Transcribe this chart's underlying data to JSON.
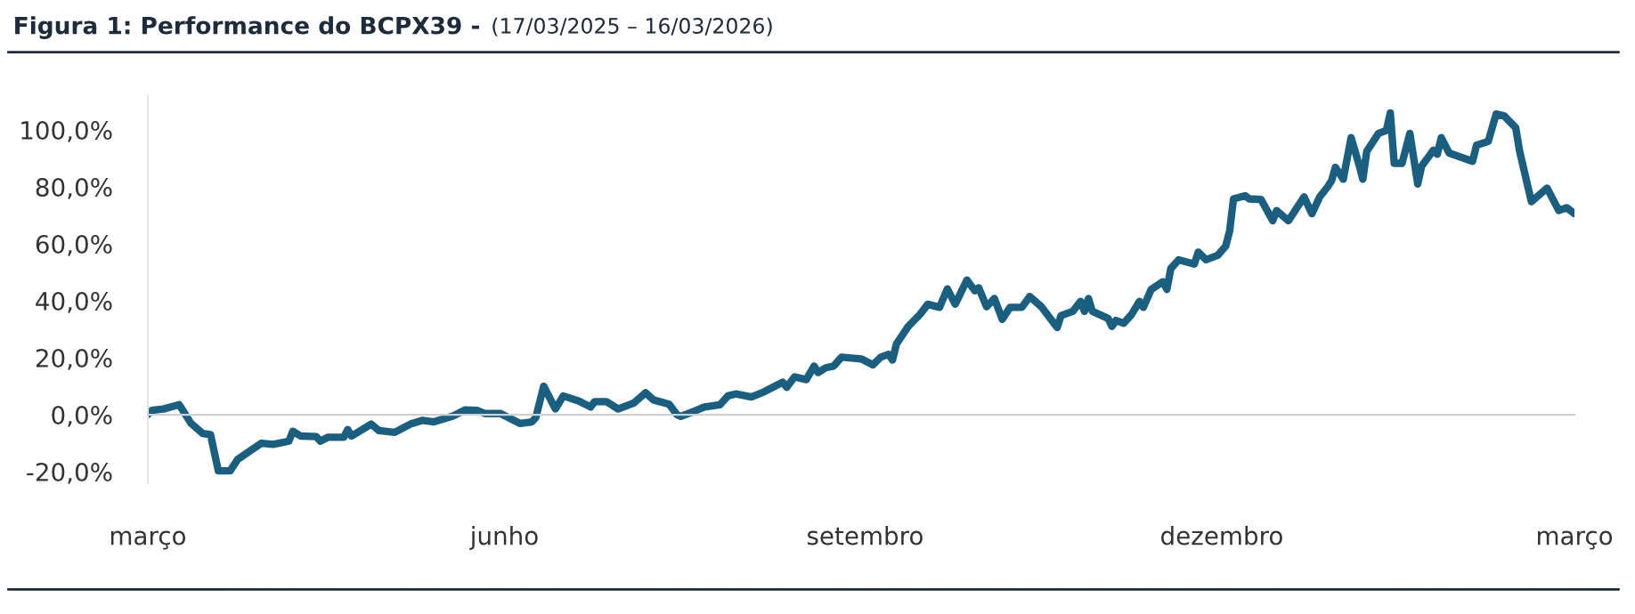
{
  "chart_data": {
    "type": "line",
    "title": "Figura 1: Performance do BCPX39 -",
    "subtitle": "(17/03/2025 – 16/03/2026)",
    "x": [
      "2025-03-17",
      "2025-03-18",
      "2025-03-21",
      "2025-03-25",
      "2025-03-28",
      "2025-03-31",
      "2025-04-02",
      "2025-04-04",
      "2025-04-07",
      "2025-04-09",
      "2025-04-15",
      "2025-04-18",
      "2025-04-22",
      "2025-04-23",
      "2025-04-25",
      "2025-04-29",
      "2025-04-30",
      "2025-05-02",
      "2025-05-06",
      "2025-05-07",
      "2025-05-08",
      "2025-05-13",
      "2025-05-15",
      "2025-05-19",
      "2025-05-23",
      "2025-05-26",
      "2025-05-29",
      "2025-06-03",
      "2025-06-06",
      "2025-06-09",
      "2025-06-11",
      "2025-06-15",
      "2025-06-17",
      "2025-06-20",
      "2025-06-23",
      "2025-06-24",
      "2025-06-26",
      "2025-06-29",
      "2025-07-01",
      "2025-07-05",
      "2025-07-08",
      "2025-07-09",
      "2025-07-12",
      "2025-07-15",
      "2025-07-19",
      "2025-07-22",
      "2025-07-24",
      "2025-07-28",
      "2025-07-30",
      "2025-07-31",
      "2025-08-03",
      "2025-08-06",
      "2025-08-10",
      "2025-08-12",
      "2025-08-14",
      "2025-08-18",
      "2025-08-21",
      "2025-08-23",
      "2025-08-26",
      "2025-08-27",
      "2025-08-29",
      "2025-09-01",
      "2025-09-03",
      "2025-09-04",
      "2025-09-06",
      "2025-09-08",
      "2025-09-10",
      "2025-09-15",
      "2025-09-18",
      "2025-09-20",
      "2025-09-22",
      "2025-09-23",
      "2025-09-24",
      "2025-09-27",
      "2025-09-30",
      "2025-10-02",
      "2025-10-05",
      "2025-10-07",
      "2025-10-09",
      "2025-10-12",
      "2025-10-14",
      "2025-10-15",
      "2025-10-17",
      "2025-10-19",
      "2025-10-21",
      "2025-10-23",
      "2025-10-26",
      "2025-10-28",
      "2025-10-31",
      "2025-11-04",
      "2025-11-05",
      "2025-11-08",
      "2025-11-10",
      "2025-11-11",
      "2025-11-12",
      "2025-11-13",
      "2025-11-17",
      "2025-11-18",
      "2025-11-19",
      "2025-11-21",
      "2025-11-23",
      "2025-11-25",
      "2025-11-26",
      "2025-11-28",
      "2025-12-01",
      "2025-12-02",
      "2025-12-03",
      "2025-12-05",
      "2025-12-09",
      "2025-12-10",
      "2025-12-12",
      "2025-12-15",
      "2025-12-17",
      "2025-12-18",
      "2025-12-19",
      "2025-12-22",
      "2025-12-23",
      "2025-12-26",
      "2025-12-29",
      "2025-12-30",
      "2026-01-02",
      "2026-01-06",
      "2026-01-08",
      "2026-01-10",
      "2026-01-12",
      "2026-01-13",
      "2026-01-14",
      "2026-01-16",
      "2026-01-18",
      "2026-01-20",
      "2026-01-21",
      "2026-01-22",
      "2026-01-25",
      "2026-01-27",
      "2026-01-28",
      "2026-01-29",
      "2026-01-31",
      "2026-02-02",
      "2026-02-04",
      "2026-02-05",
      "2026-02-08",
      "2026-02-09",
      "2026-02-10",
      "2026-02-12",
      "2026-02-18",
      "2026-02-19",
      "2026-02-22",
      "2026-02-24",
      "2026-02-26",
      "2026-03-01",
      "2026-03-02",
      "2026-03-05",
      "2026-03-09",
      "2026-03-12",
      "2026-03-14",
      "2026-03-16"
    ],
    "series": [
      {
        "color": "#1a5e80",
        "values": [
          0,
          1.5,
          2,
          3.5,
          -3,
          -6.6,
          -7,
          -19.7,
          -19.7,
          -15.6,
          -10,
          -10.4,
          -9.3,
          -5.8,
          -7.5,
          -7.7,
          -9.3,
          -7.9,
          -7.9,
          -5.2,
          -7.5,
          -3.3,
          -5.6,
          -6.2,
          -3.3,
          -2,
          -2.5,
          -0.4,
          1.7,
          1.5,
          0.4,
          0.4,
          -1,
          -3.1,
          -2.5,
          -1,
          10,
          2,
          6.6,
          4.8,
          2.7,
          4.6,
          4.6,
          2,
          4.1,
          7.7,
          5.2,
          3.7,
          0,
          -0.6,
          1,
          2.7,
          3.5,
          6.6,
          7.3,
          6.2,
          7.9,
          9.3,
          11.4,
          9.6,
          13.3,
          12.3,
          17.1,
          14.8,
          16.5,
          17.1,
          20.2,
          19.6,
          17.5,
          20.2,
          21.2,
          19.2,
          24.8,
          31,
          35.2,
          38.8,
          37.7,
          44.2,
          38.8,
          47.3,
          43.5,
          44.6,
          37.9,
          40.8,
          33.5,
          37.7,
          37.7,
          41.5,
          37.9,
          30.6,
          34.8,
          36.3,
          39.8,
          36.3,
          40.8,
          36.3,
          33.8,
          31,
          33.1,
          32.1,
          35.2,
          39.8,
          37.7,
          44,
          46.7,
          44,
          51.3,
          54.4,
          52.9,
          57.1,
          54.4,
          56,
          59.2,
          64.4,
          75.8,
          76.9,
          75.8,
          75.6,
          68.1,
          71.7,
          68.1,
          76.5,
          70.6,
          76.5,
          80,
          82.1,
          86.9,
          82.7,
          97.3,
          87.9,
          82.7,
          92.5,
          98.8,
          99.8,
          106,
          88.3,
          88.3,
          98.8,
          81,
          87.3,
          92.9,
          91.5,
          97.3,
          91.9,
          89,
          94.6,
          96,
          105.6,
          105,
          100.8,
          92.5,
          74.8,
          79.6,
          71.7,
          72.7,
          70.6
        ]
      }
    ],
    "xlim": [
      "2025-03-17",
      "2026-03-16"
    ],
    "xticks": [
      {
        "value": "2025-03-17",
        "label": "março"
      },
      {
        "value": "2025-06-16",
        "label": "junho"
      },
      {
        "value": "2025-09-16",
        "label": "setembro"
      },
      {
        "value": "2025-12-16",
        "label": "dezembro"
      },
      {
        "value": "2026-03-16",
        "label": "março"
      }
    ],
    "ylim": [
      -24,
      112
    ],
    "yticks": [
      {
        "value": -20,
        "label": "-20,0%"
      },
      {
        "value": 0,
        "label": "0,0%"
      },
      {
        "value": 20,
        "label": "20,0%"
      },
      {
        "value": 40,
        "label": "40,0%"
      },
      {
        "value": 60,
        "label": "60,0%"
      },
      {
        "value": 80,
        "label": "80,0%"
      },
      {
        "value": 100,
        "label": "100,0%"
      }
    ],
    "marker": "none",
    "line_style": "solid"
  }
}
